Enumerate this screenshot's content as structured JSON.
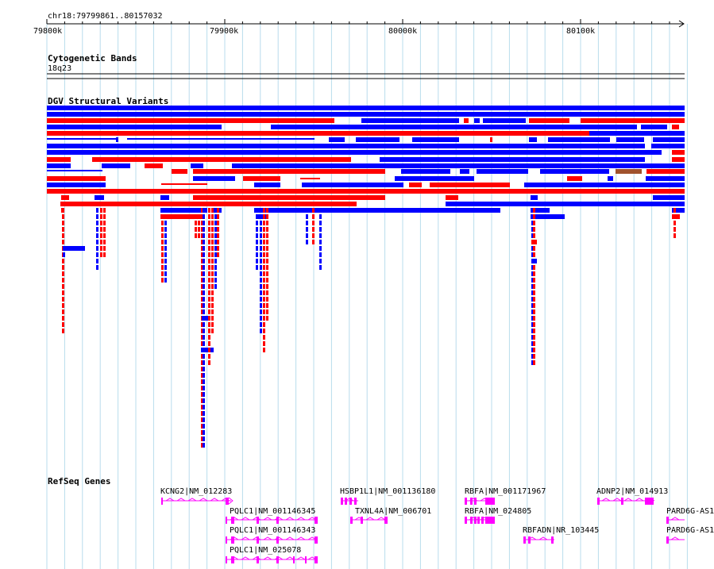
{
  "colors": {
    "gridline": "#b8dcec",
    "gain": "#0000ff",
    "loss": "#ff0000",
    "gain_loss": "#a0522d",
    "gene": "#ff00ff",
    "axis": "#000000"
  },
  "ruler": {
    "region": "chr18:79799861..80157032",
    "ticks": [
      "79800k",
      "79900k",
      "80000k",
      "80100k"
    ]
  },
  "cyto": {
    "title": "Cytogenetic Bands",
    "band": "18q23"
  },
  "dgv": {
    "title": "DGV Structural Variants"
  },
  "refseq": {
    "title": "RefSeq Genes",
    "genes": [
      {
        "label": "KCNG2|NM_012283",
        "icon": "gene-glyph"
      },
      {
        "label": "PQLC1|NM_001146345",
        "icon": "gene-glyph"
      },
      {
        "label": "PQLC1|NM_001146343",
        "icon": "gene-glyph"
      },
      {
        "label": "PQLC1|NM_025078",
        "icon": "gene-glyph"
      },
      {
        "label": "HSBP1L1|NM_001136180",
        "icon": "gene-glyph"
      },
      {
        "label": "TXNL4A|NM_006701",
        "icon": "gene-glyph"
      },
      {
        "label": "RBFA|NM_001171967",
        "icon": "gene-glyph"
      },
      {
        "label": "RBFA|NM_024805",
        "icon": "gene-glyph"
      },
      {
        "label": "RBFADN|NR_103445",
        "icon": "gene-glyph"
      },
      {
        "label": "ADNP2|NM_014913",
        "icon": "gene-glyph"
      },
      {
        "label": "PARD6G-AS1",
        "icon": "gene-glyph"
      },
      {
        "label": "PARD6G-AS1",
        "icon": "gene-glyph"
      }
    ]
  }
}
